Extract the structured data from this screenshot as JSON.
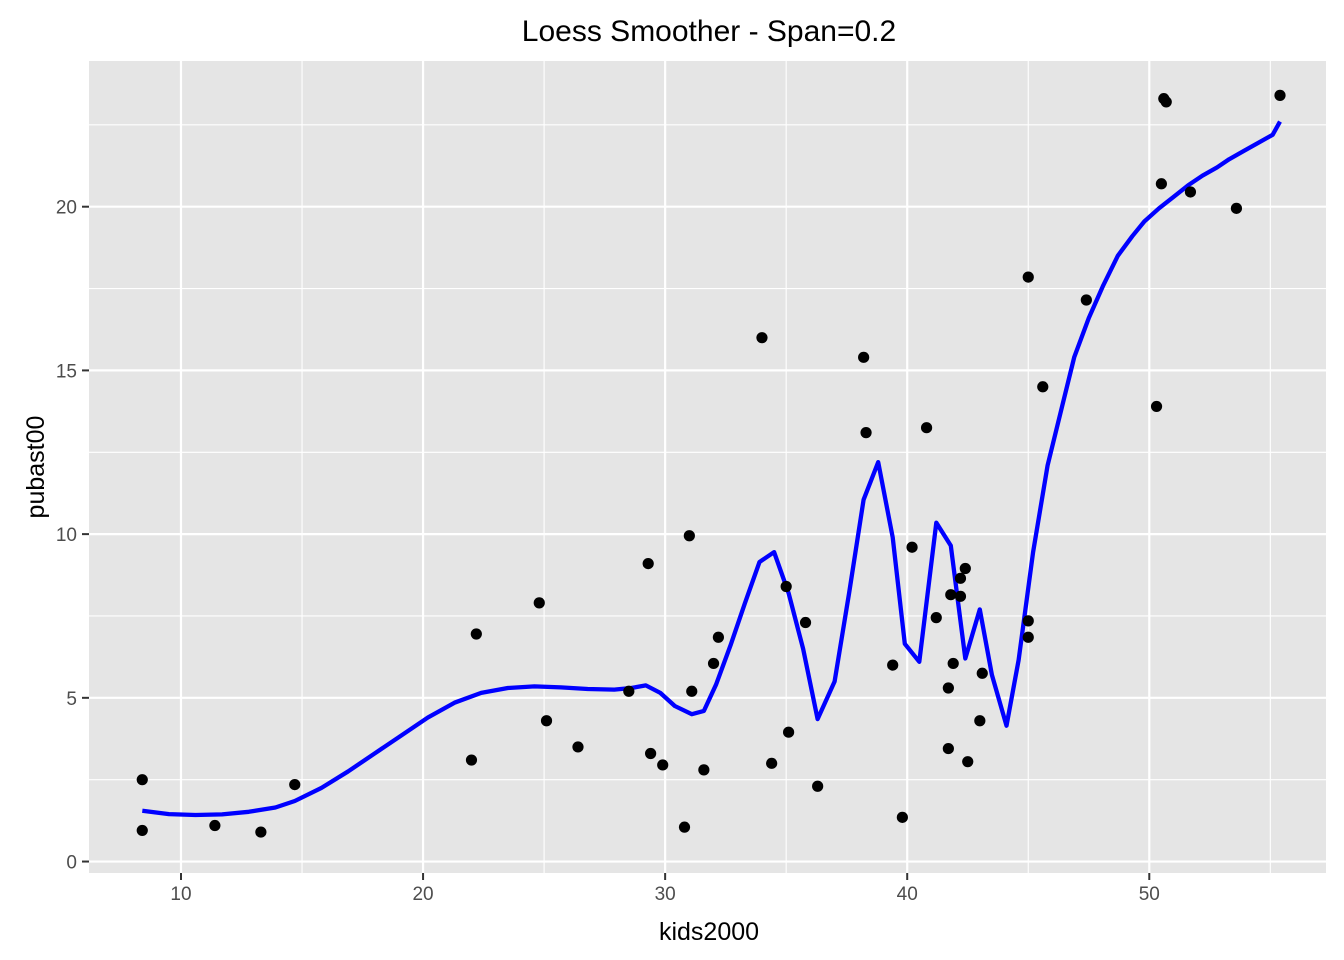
{
  "chart_data": {
    "type": "scatter",
    "title": "Loess Smoother - Span=0.2",
    "xlabel": "kids2000",
    "ylabel": "pubast00",
    "xlim": [
      6.2,
      57.3
    ],
    "ylim": [
      -0.35,
      24.45
    ],
    "x_ticks": [
      10,
      20,
      30,
      40,
      50
    ],
    "y_ticks": [
      0,
      5,
      10,
      15,
      20
    ],
    "x_tick_labels": [
      "10",
      "20",
      "30",
      "40",
      "50"
    ],
    "y_tick_labels": [
      "0",
      "5",
      "10",
      "15",
      "20"
    ],
    "grid": true,
    "legend": "none",
    "colors": {
      "panel": "#e5e5e5",
      "grid": "#ffffff",
      "points": "#000000",
      "smoother": "#0000ff",
      "ticks": "#333333",
      "tick_labels": "#4d4d4d"
    },
    "points": [
      {
        "x": 8.4,
        "y": 2.5
      },
      {
        "x": 8.4,
        "y": 0.95
      },
      {
        "x": 11.4,
        "y": 1.1
      },
      {
        "x": 13.3,
        "y": 0.9
      },
      {
        "x": 14.7,
        "y": 2.35
      },
      {
        "x": 22.0,
        "y": 3.1
      },
      {
        "x": 22.2,
        "y": 6.95
      },
      {
        "x": 24.8,
        "y": 7.9
      },
      {
        "x": 25.1,
        "y": 4.3
      },
      {
        "x": 26.4,
        "y": 3.5
      },
      {
        "x": 28.5,
        "y": 5.2
      },
      {
        "x": 29.3,
        "y": 9.1
      },
      {
        "x": 29.4,
        "y": 3.3
      },
      {
        "x": 29.9,
        "y": 2.95
      },
      {
        "x": 30.8,
        "y": 1.05
      },
      {
        "x": 31.0,
        "y": 9.95
      },
      {
        "x": 31.1,
        "y": 5.2
      },
      {
        "x": 31.6,
        "y": 2.8
      },
      {
        "x": 32.0,
        "y": 6.05
      },
      {
        "x": 32.2,
        "y": 6.85
      },
      {
        "x": 34.0,
        "y": 16.0
      },
      {
        "x": 34.4,
        "y": 3.0
      },
      {
        "x": 35.0,
        "y": 8.4
      },
      {
        "x": 35.1,
        "y": 3.95
      },
      {
        "x": 35.8,
        "y": 7.3
      },
      {
        "x": 36.3,
        "y": 2.3
      },
      {
        "x": 38.2,
        "y": 15.4
      },
      {
        "x": 38.3,
        "y": 13.1
      },
      {
        "x": 39.4,
        "y": 6.0
      },
      {
        "x": 39.8,
        "y": 1.35
      },
      {
        "x": 40.2,
        "y": 9.6
      },
      {
        "x": 40.8,
        "y": 13.25
      },
      {
        "x": 41.2,
        "y": 7.45
      },
      {
        "x": 41.7,
        "y": 5.3
      },
      {
        "x": 41.7,
        "y": 3.45
      },
      {
        "x": 41.8,
        "y": 8.15
      },
      {
        "x": 41.9,
        "y": 6.05
      },
      {
        "x": 42.2,
        "y": 8.1
      },
      {
        "x": 42.2,
        "y": 8.65
      },
      {
        "x": 42.4,
        "y": 8.95
      },
      {
        "x": 42.5,
        "y": 3.05
      },
      {
        "x": 43.0,
        "y": 4.3
      },
      {
        "x": 43.1,
        "y": 5.75
      },
      {
        "x": 45.0,
        "y": 6.85
      },
      {
        "x": 45.0,
        "y": 7.35
      },
      {
        "x": 45.0,
        "y": 17.85
      },
      {
        "x": 45.6,
        "y": 14.5
      },
      {
        "x": 47.4,
        "y": 17.15
      },
      {
        "x": 50.3,
        "y": 13.9
      },
      {
        "x": 50.5,
        "y": 20.7
      },
      {
        "x": 50.6,
        "y": 23.3
      },
      {
        "x": 50.7,
        "y": 23.2
      },
      {
        "x": 51.7,
        "y": 20.45
      },
      {
        "x": 53.6,
        "y": 19.95
      },
      {
        "x": 55.4,
        "y": 23.4
      }
    ],
    "smoother": {
      "x": [
        8.4,
        9.5,
        10.6,
        11.7,
        12.8,
        13.9,
        14.7,
        15.8,
        16.9,
        18.0,
        19.1,
        20.2,
        21.3,
        22.4,
        23.5,
        24.6,
        25.7,
        26.8,
        27.9,
        28.6,
        29.2,
        29.8,
        30.4,
        31.1,
        31.6,
        32.1,
        32.7,
        33.3,
        33.9,
        34.5,
        35.1,
        35.7,
        36.3,
        37.0,
        37.6,
        38.2,
        38.8,
        39.4,
        39.9,
        40.5,
        41.2,
        41.8,
        42.4,
        43.0,
        43.5,
        44.1,
        44.6,
        45.2,
        45.8,
        46.4,
        46.9,
        47.5,
        48.1,
        48.7,
        49.3,
        49.8,
        50.4,
        51.0,
        51.6,
        52.2,
        52.8,
        53.3,
        53.9,
        54.5,
        55.1,
        55.4
      ],
      "y": [
        1.55,
        1.45,
        1.42,
        1.44,
        1.52,
        1.65,
        1.85,
        2.25,
        2.75,
        3.3,
        3.85,
        4.4,
        4.85,
        5.15,
        5.3,
        5.35,
        5.32,
        5.27,
        5.25,
        5.3,
        5.38,
        5.15,
        4.75,
        4.5,
        4.6,
        5.4,
        6.6,
        7.9,
        9.15,
        9.45,
        8.2,
        6.5,
        4.35,
        5.5,
        8.2,
        11.05,
        12.2,
        9.9,
        6.65,
        6.1,
        10.35,
        9.65,
        6.2,
        7.7,
        5.7,
        4.15,
        6.15,
        9.45,
        12.1,
        13.9,
        15.4,
        16.6,
        17.6,
        18.5,
        19.1,
        19.55,
        19.95,
        20.3,
        20.65,
        20.95,
        21.2,
        21.45,
        21.7,
        21.95,
        22.2,
        22.6
      ]
    }
  }
}
